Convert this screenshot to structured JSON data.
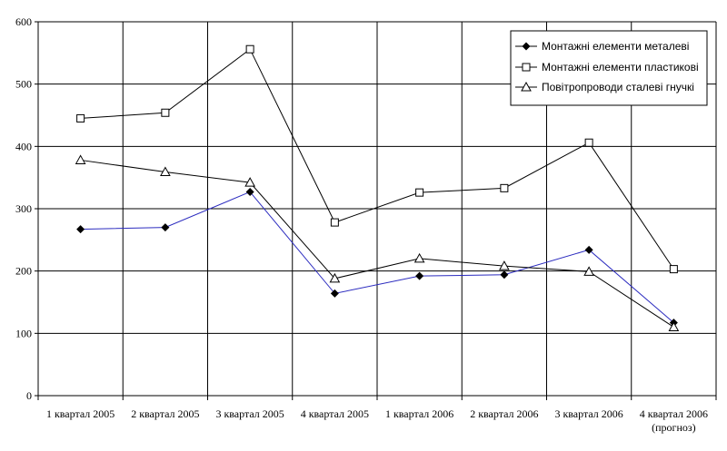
{
  "chart_data": {
    "type": "line",
    "categories": [
      "1 квартал 2005",
      "2 квартал 2005",
      "3 квартал 2005",
      "4 квартал 2005",
      "1 квартал 2006",
      "2 квартал 2006",
      "3 квартал 2006",
      "4 квартал 2006"
    ],
    "category_sublabels": [
      "",
      "",
      "",
      "",
      "",
      "",
      "",
      "(прогноз)"
    ],
    "ylim": [
      0,
      600
    ],
    "yticks": [
      0,
      100,
      200,
      300,
      400,
      500,
      600
    ],
    "grid": true,
    "legend_position": "top-right",
    "series": [
      {
        "name": "Монтажні елементи металеві",
        "marker": "diamond-filled",
        "color": "#2b2bbf",
        "values": [
          267,
          270,
          327,
          164,
          192,
          194,
          234,
          117
        ]
      },
      {
        "name": "Монтажні елементи пластикові",
        "marker": "square-open",
        "color": "#000000",
        "values": [
          445,
          454,
          556,
          278,
          326,
          333,
          406,
          203
        ]
      },
      {
        "name": "Повітропроводи сталеві гнучкі",
        "marker": "triangle-open",
        "color": "#000000",
        "values": [
          378,
          359,
          342,
          188,
          220,
          208,
          199,
          110
        ]
      }
    ]
  }
}
